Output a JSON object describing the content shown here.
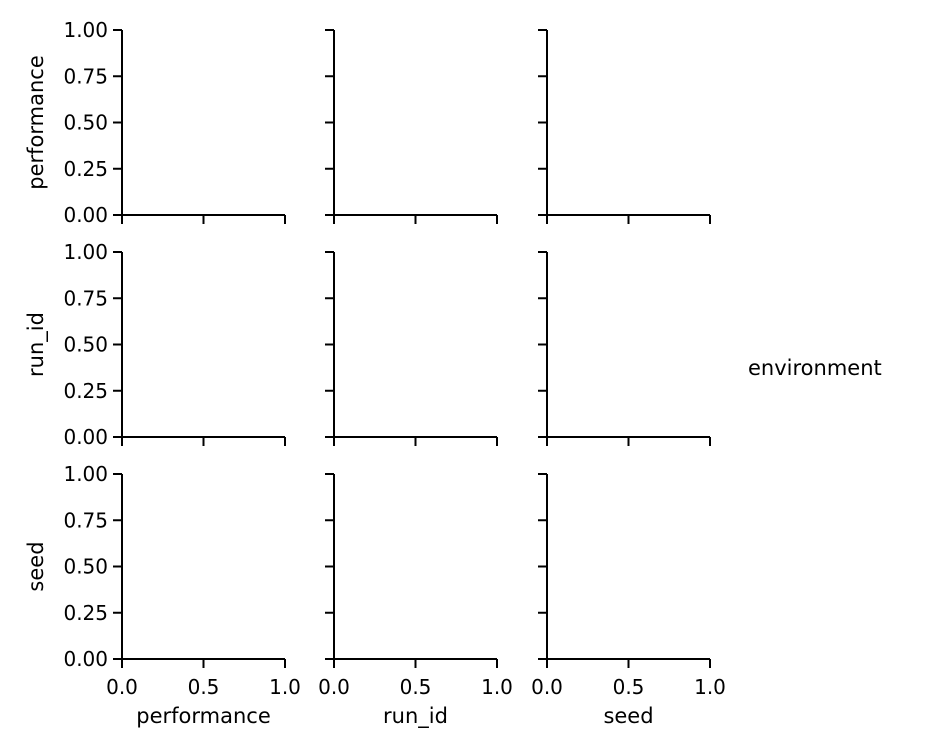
{
  "chart_data": {
    "type": "scatter",
    "layout": "pairgrid",
    "variables": [
      "performance",
      "run_id",
      "seed"
    ],
    "xlim": [
      0.0,
      1.0
    ],
    "ylim": [
      0.0,
      1.0
    ],
    "xticks": [
      "0.0",
      "0.5",
      "1.0"
    ],
    "yticks": [
      "0.00",
      "0.25",
      "0.50",
      "0.75",
      "1.00"
    ],
    "row_labels": [
      "performance",
      "run_id",
      "seed"
    ],
    "col_labels": [
      "performance",
      "run_id",
      "seed"
    ],
    "series": [],
    "legend": {
      "title": "environment",
      "placement": "right",
      "entries": []
    },
    "grid": false
  }
}
